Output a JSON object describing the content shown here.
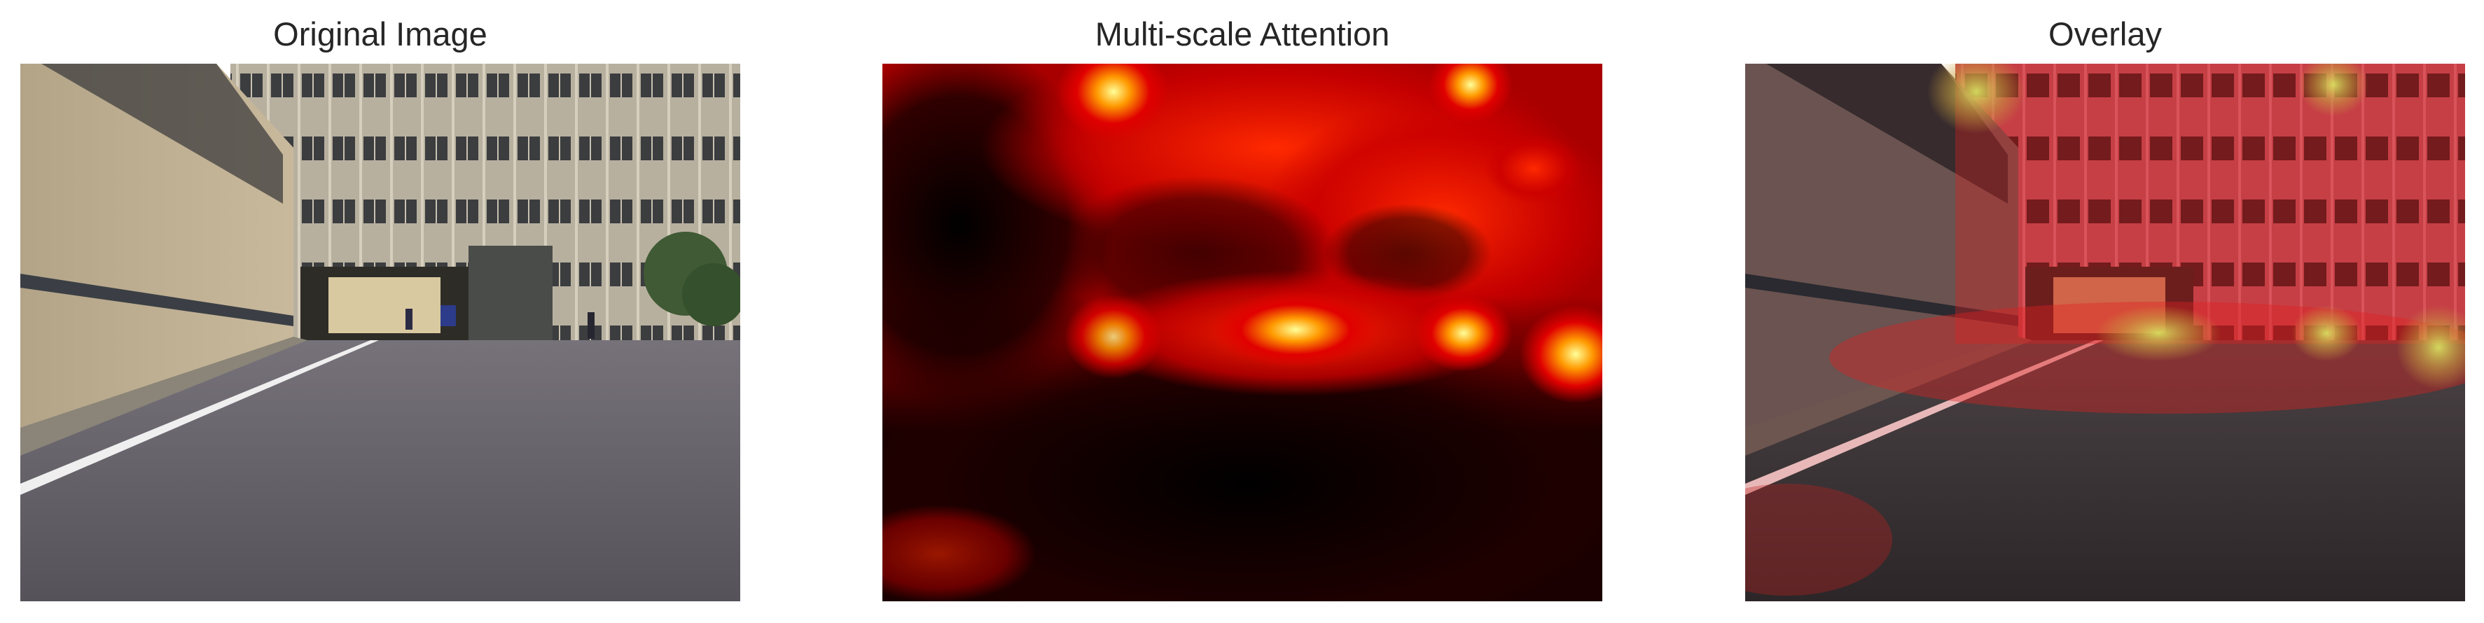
{
  "figure": {
    "panels": [
      {
        "title": "Original Image"
      },
      {
        "title": "Multi-scale Attention"
      },
      {
        "title": "Overlay"
      }
    ]
  },
  "colors": {
    "title_text": "#262626",
    "heatmap_low": "#000000",
    "heatmap_mid": "#cc0000",
    "heatmap_high": "#ffff66",
    "asphalt": "#5e5b62",
    "wall_stone": "#b9aa8c"
  }
}
